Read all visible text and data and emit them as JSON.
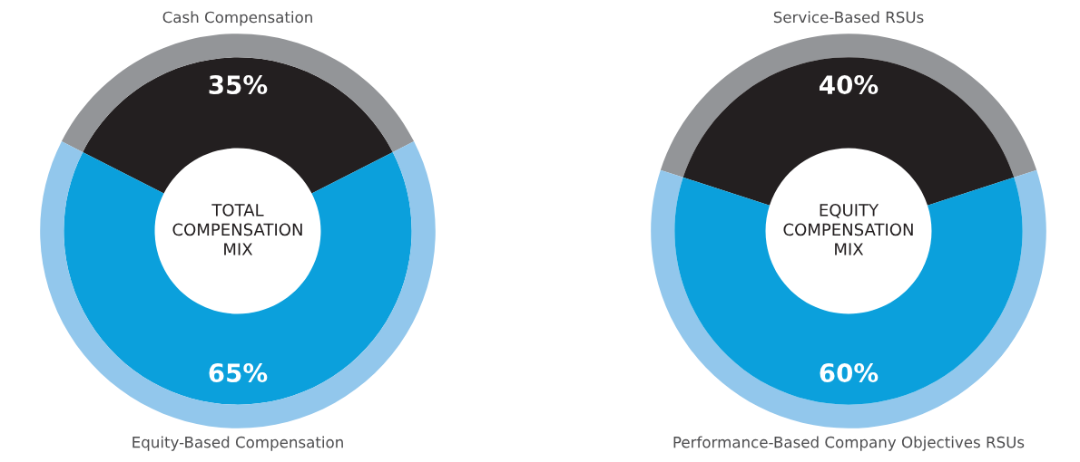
{
  "chart_data": [
    {
      "type": "donut",
      "title": "TOTAL\nCOMPENSATION\nMIX",
      "categories": [
        "Cash Compensation",
        "Equity-Based Compensation"
      ],
      "legend": false,
      "series": [
        {
          "values": [
            35,
            65
          ],
          "colors": [
            "#231f20",
            "#0ba0dc"
          ],
          "value_labels": [
            "35%",
            "65%"
          ]
        },
        {
          "values": [
            35,
            65
          ],
          "colors": [
            "#939598",
            "#92c7ec"
          ]
        }
      ]
    },
    {
      "type": "donut",
      "title": "EQUITY\nCOMPENSATION\nMIX",
      "categories": [
        "Service-Based RSUs",
        "Performance-Based Company Objectives RSUs"
      ],
      "legend": false,
      "series": [
        {
          "values": [
            40,
            60
          ],
          "colors": [
            "#939598",
            "#92c7ec"
          ]
        },
        {
          "values": [
            40,
            60
          ],
          "colors": [
            "#231f20",
            "#0ba0dc"
          ],
          "value_labels": [
            "40%",
            "60%"
          ]
        }
      ]
    }
  ]
}
